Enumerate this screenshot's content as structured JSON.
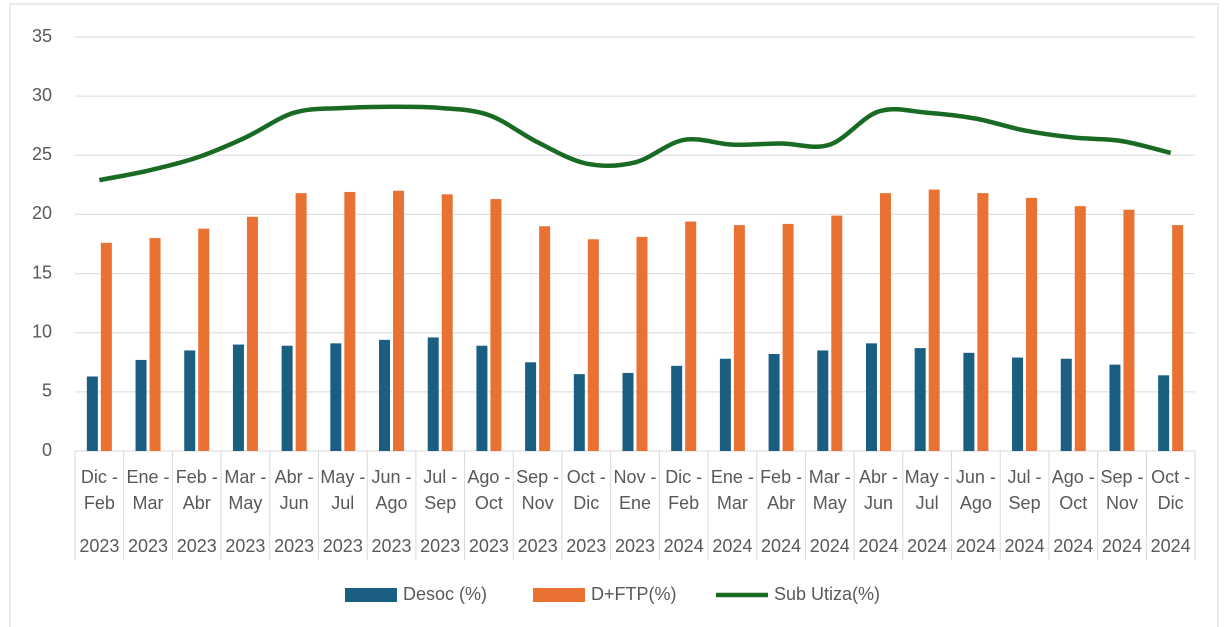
{
  "chart_data": {
    "type": "bar_line",
    "categories": [
      "Dic - Feb",
      "Ene - Mar",
      "Feb - Abr",
      "Mar - May",
      "Abr - Jun",
      "May - Jul",
      "Jun - Ago",
      "Jul - Sep",
      "Ago - Oct",
      "Sep - Nov",
      "Oct - Dic",
      "Nov - Ene",
      "Dic - Feb",
      "Ene - Mar",
      "Feb - Abr",
      "Mar - May",
      "Abr - Jun",
      "May - Jul",
      "Jun - Ago",
      "Jul - Sep",
      "Ago - Oct",
      "Sep - Nov",
      "Oct - Dic"
    ],
    "years": [
      "2023",
      "2023",
      "2023",
      "2023",
      "2023",
      "2023",
      "2023",
      "2023",
      "2023",
      "2023",
      "2023",
      "2023",
      "2024",
      "2024",
      "2024",
      "2024",
      "2024",
      "2024",
      "2024",
      "2024",
      "2024",
      "2024",
      "2024"
    ],
    "series": [
      {
        "name": "Desoc (%)",
        "color": "#1a5e82",
        "kind": "bar",
        "values": [
          6.3,
          7.7,
          8.5,
          9.0,
          8.9,
          9.1,
          9.4,
          9.6,
          8.9,
          7.5,
          6.5,
          6.6,
          7.2,
          7.8,
          8.2,
          8.5,
          9.1,
          8.7,
          8.3,
          7.9,
          7.8,
          7.3,
          6.4
        ]
      },
      {
        "name": "D+FTP(%)",
        "color": "#e97132",
        "kind": "bar",
        "values": [
          17.6,
          18.0,
          18.8,
          19.8,
          21.8,
          21.9,
          22.0,
          21.7,
          21.3,
          19.0,
          17.9,
          18.1,
          19.4,
          19.1,
          19.2,
          19.9,
          21.8,
          22.1,
          21.8,
          21.4,
          20.7,
          20.4,
          19.1
        ]
      },
      {
        "name": "Sub Utiza(%)",
        "color": "#196b24",
        "kind": "line",
        "values": [
          22.9,
          23.7,
          24.8,
          26.5,
          28.6,
          29.0,
          29.1,
          29.0,
          28.4,
          26.1,
          24.3,
          24.4,
          26.3,
          25.9,
          26.0,
          25.9,
          28.7,
          28.6,
          28.1,
          27.1,
          26.5,
          26.2,
          25.2
        ]
      }
    ],
    "ylim": [
      0,
      35
    ],
    "yticks": [
      0,
      5,
      10,
      15,
      20,
      25,
      30,
      35
    ],
    "grid": true,
    "legend": "bottom"
  }
}
